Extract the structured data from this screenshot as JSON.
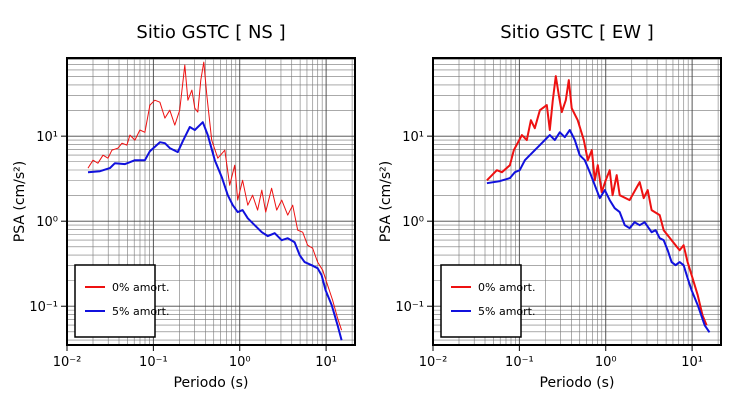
{
  "chart_data": [
    {
      "type": "line",
      "title": "Sitio GSTC [ NS ]",
      "x_label": "Periodo (s)",
      "y_label": "PSA (cm/s²)",
      "xscale": "log",
      "yscale": "log",
      "grid": true,
      "minor_grid": true,
      "legend": "lower left",
      "xlim": [
        0.01,
        21.6
      ],
      "ylim": [
        0.035,
        83
      ],
      "xticks": [
        {
          "value": 0.01,
          "label": "10⁻²"
        },
        {
          "value": 0.1,
          "label": "10⁻¹"
        },
        {
          "value": 1,
          "label": "10⁰"
        },
        {
          "value": 10,
          "label": "10¹"
        }
      ],
      "yticks": [
        {
          "value": 0.1,
          "label": "10⁻¹"
        },
        {
          "value": 1,
          "label": "10⁰"
        },
        {
          "value": 10,
          "label": "10¹"
        }
      ],
      "series": [
        {
          "name": "0% amort.",
          "color": "#ee1111",
          "width": 1,
          "x": [
            0.0175,
            0.02,
            0.0228,
            0.0261,
            0.0298,
            0.0331,
            0.0389,
            0.0433,
            0.0494,
            0.0535,
            0.0611,
            0.0698,
            0.0798,
            0.0912,
            0.104,
            0.119,
            0.136,
            0.155,
            0.177,
            0.202,
            0.231,
            0.251,
            0.279,
            0.302,
            0.327,
            0.354,
            0.384,
            0.415,
            0.474,
            0.557,
            0.671,
            0.766,
            0.875,
            0.948,
            1.08,
            1.24,
            1.41,
            1.61,
            1.8,
            2.0,
            2.34,
            2.68,
            3.06,
            3.59,
            4.1,
            4.69,
            5.35,
            6.11,
            6.98,
            7.98,
            9.12,
            10.4,
            11.9,
            13.6,
            15.1
          ],
          "values": [
            4.21,
            5.22,
            4.81,
            5.97,
            5.51,
            6.84,
            7.23,
            8.27,
            7.84,
            10.3,
            8.98,
            11.8,
            11.1,
            23.2,
            26.5,
            25.1,
            16.3,
            20.2,
            13.5,
            20.2,
            68.4,
            26.5,
            34.8,
            21.3,
            19.2,
            45.6,
            74.3,
            30.4,
            8.98,
            5.51,
            6.84,
            2.65,
            4.56,
            1.77,
            3.03,
            1.54,
            2.02,
            1.35,
            2.32,
            1.28,
            2.44,
            1.35,
            1.77,
            1.18,
            1.54,
            0.784,
            0.743,
            0.522,
            0.481,
            0.33,
            0.265,
            0.177,
            0.118,
            0.0723,
            0.0522
          ]
        },
        {
          "name": "5% amort.",
          "color": "#1111dd",
          "width": 2,
          "x": [
            0.0175,
            0.0241,
            0.0314,
            0.0359,
            0.0469,
            0.0611,
            0.0798,
            0.0912,
            0.119,
            0.136,
            0.155,
            0.192,
            0.219,
            0.264,
            0.302,
            0.373,
            0.427,
            0.514,
            0.619,
            0.727,
            0.83,
            0.948,
            1.08,
            1.24,
            1.49,
            1.8,
            2.11,
            2.54,
            3.06,
            3.59,
            4.32,
            4.94,
            5.64,
            6.8,
            7.98,
            8.87,
            9.87,
            11.6,
            13.6,
            15.1
          ],
          "values": [
            3.77,
            3.87,
            4.21,
            4.81,
            4.69,
            5.22,
            5.22,
            6.66,
            8.5,
            8.27,
            7.23,
            6.49,
            8.73,
            12.8,
            11.8,
            14.6,
            10.3,
            5.22,
            3.29,
            2.02,
            1.54,
            1.28,
            1.35,
            1.08,
            0.897,
            0.743,
            0.667,
            0.723,
            0.597,
            0.631,
            0.566,
            0.398,
            0.33,
            0.304,
            0.28,
            0.232,
            0.154,
            0.103,
            0.0597,
            0.0398
          ]
        }
      ]
    },
    {
      "type": "line",
      "title": "Sitio GSTC [ EW ]",
      "x_label": "Periodo (s)",
      "y_label": "PSA (cm/s²)",
      "xscale": "log",
      "yscale": "log",
      "grid": true,
      "minor_grid": true,
      "legend": "lower left",
      "xlim": [
        0.01,
        21.6
      ],
      "ylim": [
        0.035,
        83
      ],
      "xticks": [
        {
          "value": 0.01,
          "label": "10⁻²"
        },
        {
          "value": 0.1,
          "label": "10⁻¹"
        },
        {
          "value": 1,
          "label": "10⁰"
        },
        {
          "value": 10,
          "label": "10¹"
        }
      ],
      "yticks": [
        {
          "value": 0.1,
          "label": "10⁻¹"
        },
        {
          "value": 1,
          "label": "10⁰"
        },
        {
          "value": 10,
          "label": "10¹"
        }
      ],
      "series": [
        {
          "name": "0% amort.",
          "color": "#ee1111",
          "width": 2,
          "x": [
            0.0421,
            0.0549,
            0.0628,
            0.0776,
            0.0863,
            0.107,
            0.122,
            0.136,
            0.151,
            0.173,
            0.208,
            0.225,
            0.244,
            0.264,
            0.286,
            0.31,
            0.345,
            0.373,
            0.404,
            0.474,
            0.557,
            0.619,
            0.689,
            0.746,
            0.809,
            0.899,
            1.0,
            1.11,
            1.2,
            1.34,
            1.45,
            1.89,
            2.47,
            2.75,
            3.06,
            3.4,
            4.21,
            4.69,
            5.79,
            7.17,
            7.98,
            8.87,
            9.87,
            11.6,
            13.2,
            14.7
          ],
          "values": [
            3.03,
            3.98,
            3.77,
            4.56,
            6.84,
            10.3,
            8.98,
            15.4,
            12.4,
            20.2,
            23.2,
            11.8,
            26.5,
            50.8,
            30.4,
            19.2,
            26.5,
            45.6,
            21.3,
            15.4,
            8.98,
            5.22,
            6.84,
            3.03,
            4.56,
            2.19,
            3.03,
            3.98,
            2.02,
            3.48,
            2.02,
            1.77,
            2.88,
            1.87,
            2.32,
            1.35,
            1.18,
            0.784,
            0.597,
            0.456,
            0.522,
            0.33,
            0.232,
            0.135,
            0.0784,
            0.0597
          ]
        },
        {
          "name": "5% amort.",
          "color": "#1111dd",
          "width": 2,
          "x": [
            0.0421,
            0.0595,
            0.0776,
            0.0887,
            0.101,
            0.116,
            0.132,
            0.151,
            0.173,
            0.197,
            0.225,
            0.257,
            0.294,
            0.336,
            0.384,
            0.438,
            0.5,
            0.572,
            0.653,
            0.746,
            0.853,
            0.974,
            1.11,
            1.27,
            1.45,
            1.66,
            1.89,
            2.16,
            2.47,
            2.82,
            3.4,
            3.78,
            4.21,
            4.69,
            5.21,
            5.79,
            6.44,
            7.17,
            7.98,
            8.87,
            9.87,
            11.6,
            14.0,
            15.9
          ],
          "values": [
            2.8,
            2.96,
            3.21,
            3.77,
            3.98,
            5.22,
            5.97,
            6.84,
            7.84,
            8.98,
            10.3,
            8.98,
            11.1,
            9.73,
            11.8,
            8.98,
            5.97,
            5.22,
            3.77,
            2.65,
            1.87,
            2.32,
            1.77,
            1.42,
            1.28,
            0.897,
            0.828,
            0.973,
            0.897,
            0.973,
            0.743,
            0.784,
            0.631,
            0.597,
            0.456,
            0.33,
            0.304,
            0.33,
            0.304,
            0.214,
            0.154,
            0.103,
            0.0597,
            0.0494
          ]
        }
      ]
    }
  ]
}
